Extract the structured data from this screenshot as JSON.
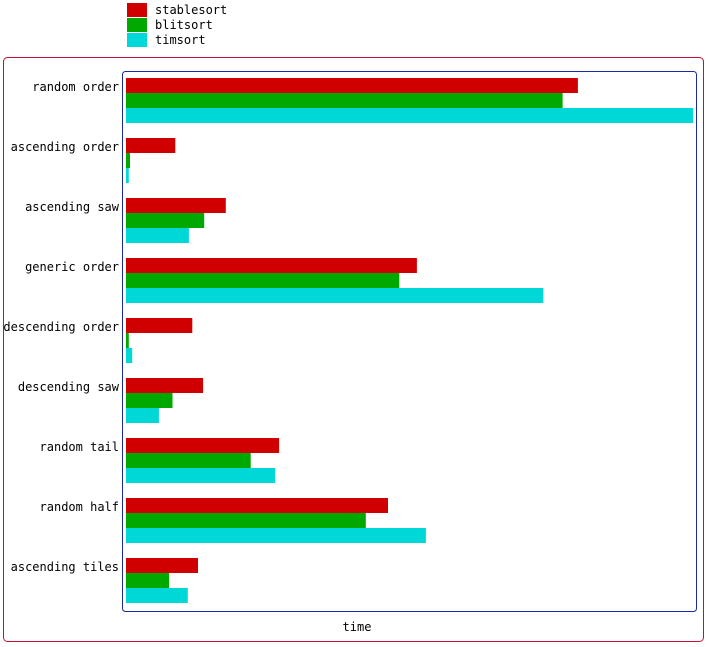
{
  "chart_data": {
    "type": "bar",
    "orientation": "horizontal",
    "title": "",
    "xlabel": "time",
    "ylabel": "",
    "legend_placement": "top-left",
    "grid": false,
    "categories": [
      "random order",
      "ascending order",
      "ascending saw",
      "generic order",
      "descending order",
      "descending saw",
      "random tail",
      "random half",
      "ascending tiles"
    ],
    "xlim": [
      0,
      100
    ],
    "series": [
      {
        "name": "stablesort",
        "color": "#d10000",
        "values": [
          79.7,
          8.7,
          17.6,
          51.3,
          11.7,
          13.6,
          27.0,
          46.2,
          12.7
        ]
      },
      {
        "name": "blitsort",
        "color": "#00a800",
        "values": [
          77.0,
          0.7,
          13.8,
          48.2,
          0.5,
          8.2,
          22.0,
          42.3,
          7.6
        ]
      },
      {
        "name": "timsort",
        "color": "#00d8d8",
        "values": [
          100.0,
          0.5,
          11.1,
          73.6,
          1.1,
          5.8,
          26.3,
          52.9,
          10.9
        ]
      }
    ]
  }
}
